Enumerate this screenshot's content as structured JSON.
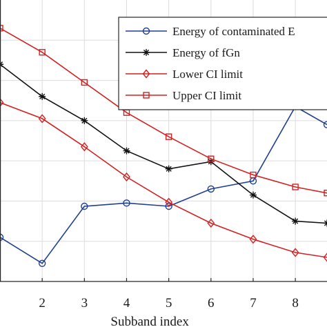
{
  "chart_data": {
    "type": "line",
    "xlabel": "Subband index",
    "ylabel": "",
    "title": "",
    "xlim": [
      1,
      8.75
    ],
    "ylim": [
      0,
      7
    ],
    "x_ticks": [
      2,
      3,
      4,
      5,
      6,
      7,
      8
    ],
    "grid": true,
    "legend_position": "top-right",
    "series": [
      {
        "name": "Energy of contaminated E",
        "color": "#1f3f8f",
        "marker": "circle",
        "x": [
          1,
          2,
          3,
          4,
          5,
          6,
          7,
          8,
          8.75
        ],
        "y": [
          1.1,
          0.45,
          1.87,
          1.95,
          1.87,
          2.3,
          2.5,
          4.35,
          3.9
        ]
      },
      {
        "name": "Energy of fGn",
        "color": "#111111",
        "marker": "star",
        "x": [
          1,
          2,
          3,
          4,
          5,
          6,
          7,
          8,
          8.75
        ],
        "y": [
          5.4,
          4.6,
          4.0,
          3.25,
          2.8,
          2.98,
          2.15,
          1.5,
          1.45
        ]
      },
      {
        "name": "Lower CI limit",
        "color": "#d42020",
        "marker": "diamond",
        "x": [
          1,
          2,
          3,
          4,
          5,
          6,
          7,
          8,
          8.75
        ],
        "y": [
          4.45,
          4.05,
          3.35,
          2.6,
          1.97,
          1.45,
          1.05,
          0.72,
          0.6
        ]
      },
      {
        "name": "Upper CI limit",
        "color": "#d42020",
        "marker": "square",
        "x": [
          1,
          2,
          3,
          4,
          5,
          6,
          7,
          8,
          8.75
        ],
        "y": [
          6.3,
          5.7,
          4.95,
          4.2,
          3.6,
          3.05,
          2.65,
          2.35,
          2.2
        ]
      }
    ]
  }
}
